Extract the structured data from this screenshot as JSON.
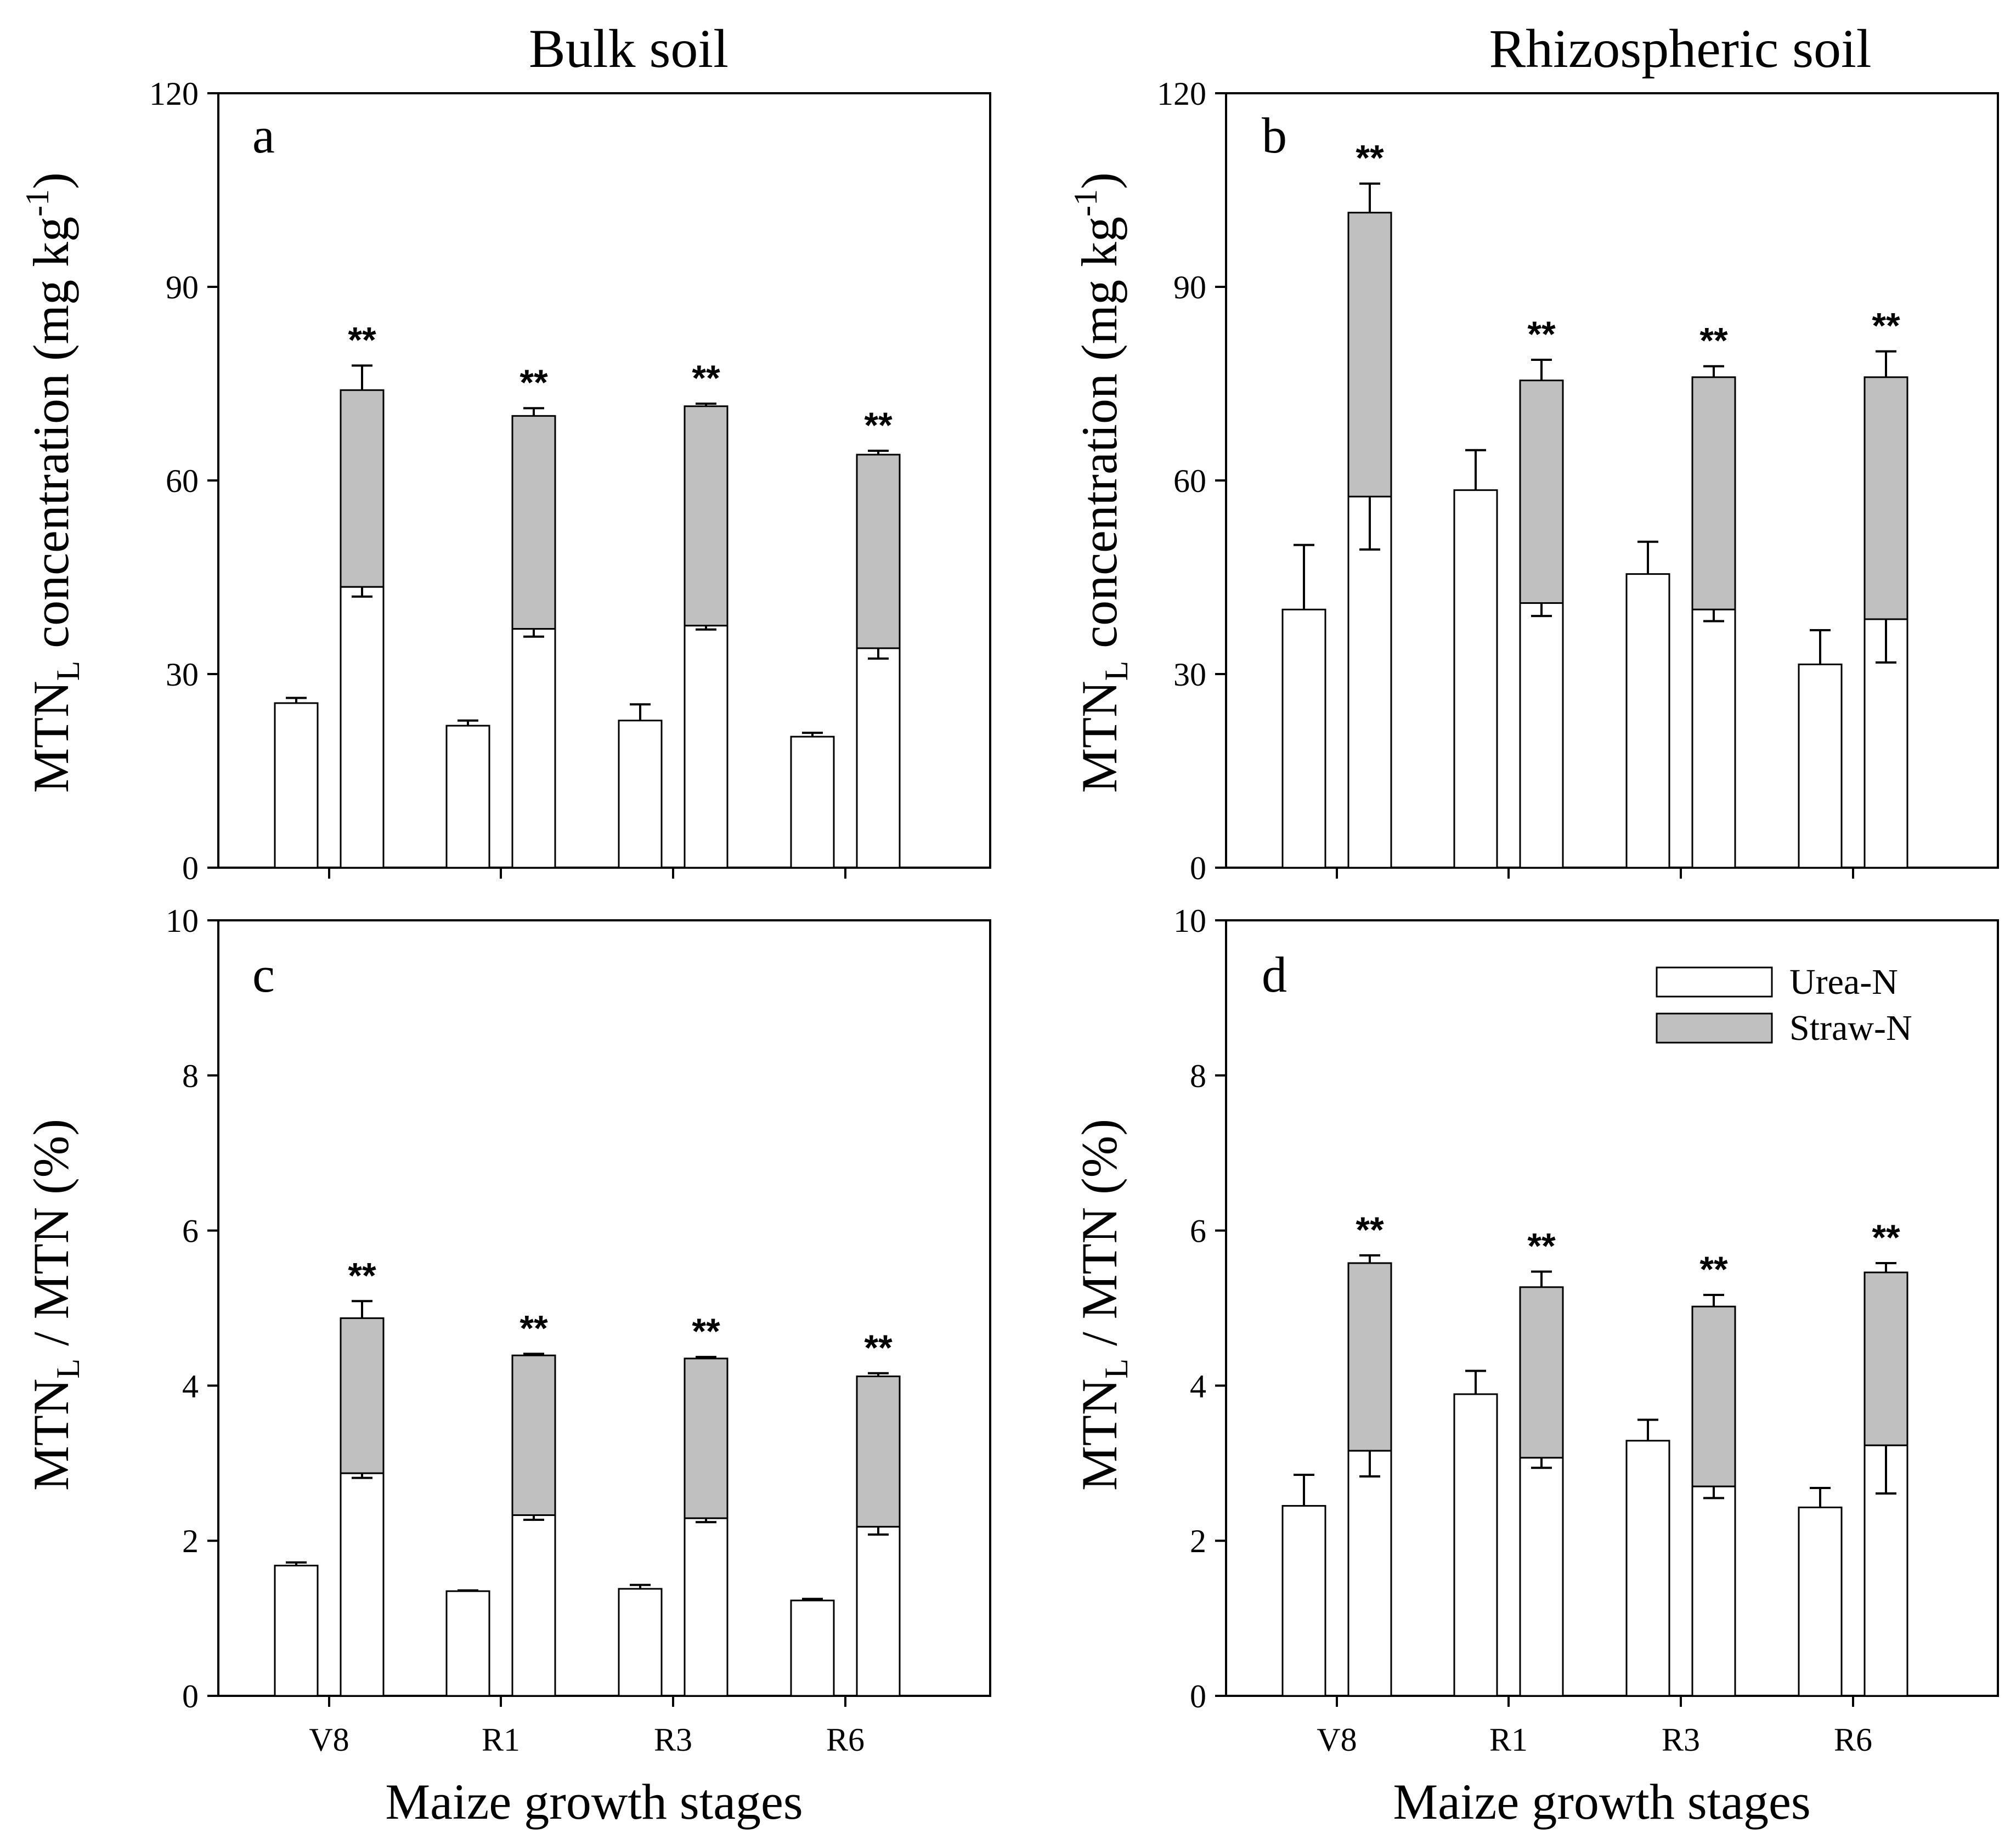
{
  "titles": {
    "bulk": "Bulk soil",
    "rhizo": "Rhizospheric soil",
    "x_axis": "Maize growth stages"
  },
  "ylabels": {
    "top": {
      "main": "MTN",
      "sub": "L",
      "rest": " concentration (mg kg",
      "sup": "-1",
      "end": ")"
    },
    "bottom": {
      "main": "MTN",
      "sub": "L",
      "rest": " / MTN (%)"
    }
  },
  "legend": {
    "items": [
      {
        "label": "Urea-N",
        "color": "#ffffff"
      },
      {
        "label": "Straw-N",
        "color": "#c0c0c0"
      }
    ]
  },
  "colors": {
    "urea": "#ffffff",
    "straw": "#c0c0c0",
    "stroke": "#000000"
  },
  "chart_data": [
    {
      "panel": "a",
      "type": "bar",
      "title": "Bulk soil",
      "categories": [
        "V8",
        "R1",
        "R3",
        "R6"
      ],
      "ylabel": "MTNL concentration (mg kg-1)",
      "ylim": [
        0,
        120
      ],
      "yticks": [
        0,
        30,
        60,
        90,
        120
      ],
      "single": {
        "name": "Urea-N",
        "values": [
          25.5,
          22,
          22.8,
          20.3
        ],
        "err": [
          0.8,
          0.8,
          2.5,
          0.6
        ]
      },
      "stacked": {
        "urea": [
          43.5,
          37,
          37.5,
          34
        ],
        "total": [
          74,
          70,
          71.5,
          64
        ],
        "urea_err": [
          1.5,
          1.2,
          0.6,
          1.6
        ],
        "total_err": [
          3.8,
          1.2,
          0.4,
          0.6
        ]
      },
      "sig": [
        "**",
        "**",
        "**",
        "**"
      ]
    },
    {
      "panel": "b",
      "type": "bar",
      "title": "Rhizospheric soil",
      "categories": [
        "V8",
        "R1",
        "R3",
        "R6"
      ],
      "ylabel": "MTNL concentration (mg kg-1)",
      "ylim": [
        0,
        120
      ],
      "yticks": [
        0,
        30,
        60,
        90,
        120
      ],
      "single": {
        "name": "Urea-N",
        "values": [
          40,
          58.5,
          45.5,
          31.5
        ],
        "err": [
          10,
          6.2,
          5,
          5.3
        ]
      },
      "stacked": {
        "urea": [
          57.5,
          41,
          40,
          38.5
        ],
        "total": [
          101.5,
          75.5,
          76,
          76
        ],
        "urea_err": [
          8.2,
          2,
          1.8,
          6.7
        ],
        "total_err": [
          4.5,
          3.2,
          1.7,
          4
        ]
      },
      "sig": [
        "**",
        "**",
        "**",
        "**"
      ]
    },
    {
      "panel": "c",
      "type": "bar",
      "categories": [
        "V8",
        "R1",
        "R3",
        "R6"
      ],
      "xlabel": "Maize growth stages",
      "ylabel": "MTNL / MTN (%)",
      "ylim": [
        0,
        10
      ],
      "yticks": [
        0,
        2,
        4,
        6,
        8,
        10
      ],
      "single": {
        "name": "Urea-N",
        "values": [
          1.68,
          1.35,
          1.38,
          1.23
        ],
        "err": [
          0.04,
          0.01,
          0.05,
          0.02
        ]
      },
      "stacked": {
        "urea": [
          2.87,
          2.33,
          2.29,
          2.18
        ],
        "total": [
          4.87,
          4.39,
          4.35,
          4.12
        ],
        "urea_err": [
          0.06,
          0.06,
          0.05,
          0.1
        ],
        "total_err": [
          0.22,
          0.02,
          0.02,
          0.04
        ]
      },
      "sig": [
        "**",
        "**",
        "**",
        "**"
      ]
    },
    {
      "panel": "d",
      "type": "bar",
      "categories": [
        "V8",
        "R1",
        "R3",
        "R6"
      ],
      "xlabel": "Maize growth stages",
      "ylabel": "MTNL / MTN (%)",
      "ylim": [
        0,
        10
      ],
      "yticks": [
        0,
        2,
        4,
        6,
        8,
        10
      ],
      "single": {
        "name": "Urea-N",
        "values": [
          2.45,
          3.89,
          3.29,
          2.43
        ],
        "err": [
          0.4,
          0.3,
          0.27,
          0.25
        ]
      },
      "stacked": {
        "urea": [
          3.16,
          3.07,
          2.7,
          3.23
        ],
        "total": [
          5.58,
          5.27,
          5.02,
          5.46
        ],
        "urea_err": [
          0.33,
          0.13,
          0.15,
          0.62
        ],
        "total_err": [
          0.1,
          0.2,
          0.15,
          0.12
        ]
      },
      "sig": [
        "**",
        "**",
        "**",
        "**"
      ]
    }
  ]
}
